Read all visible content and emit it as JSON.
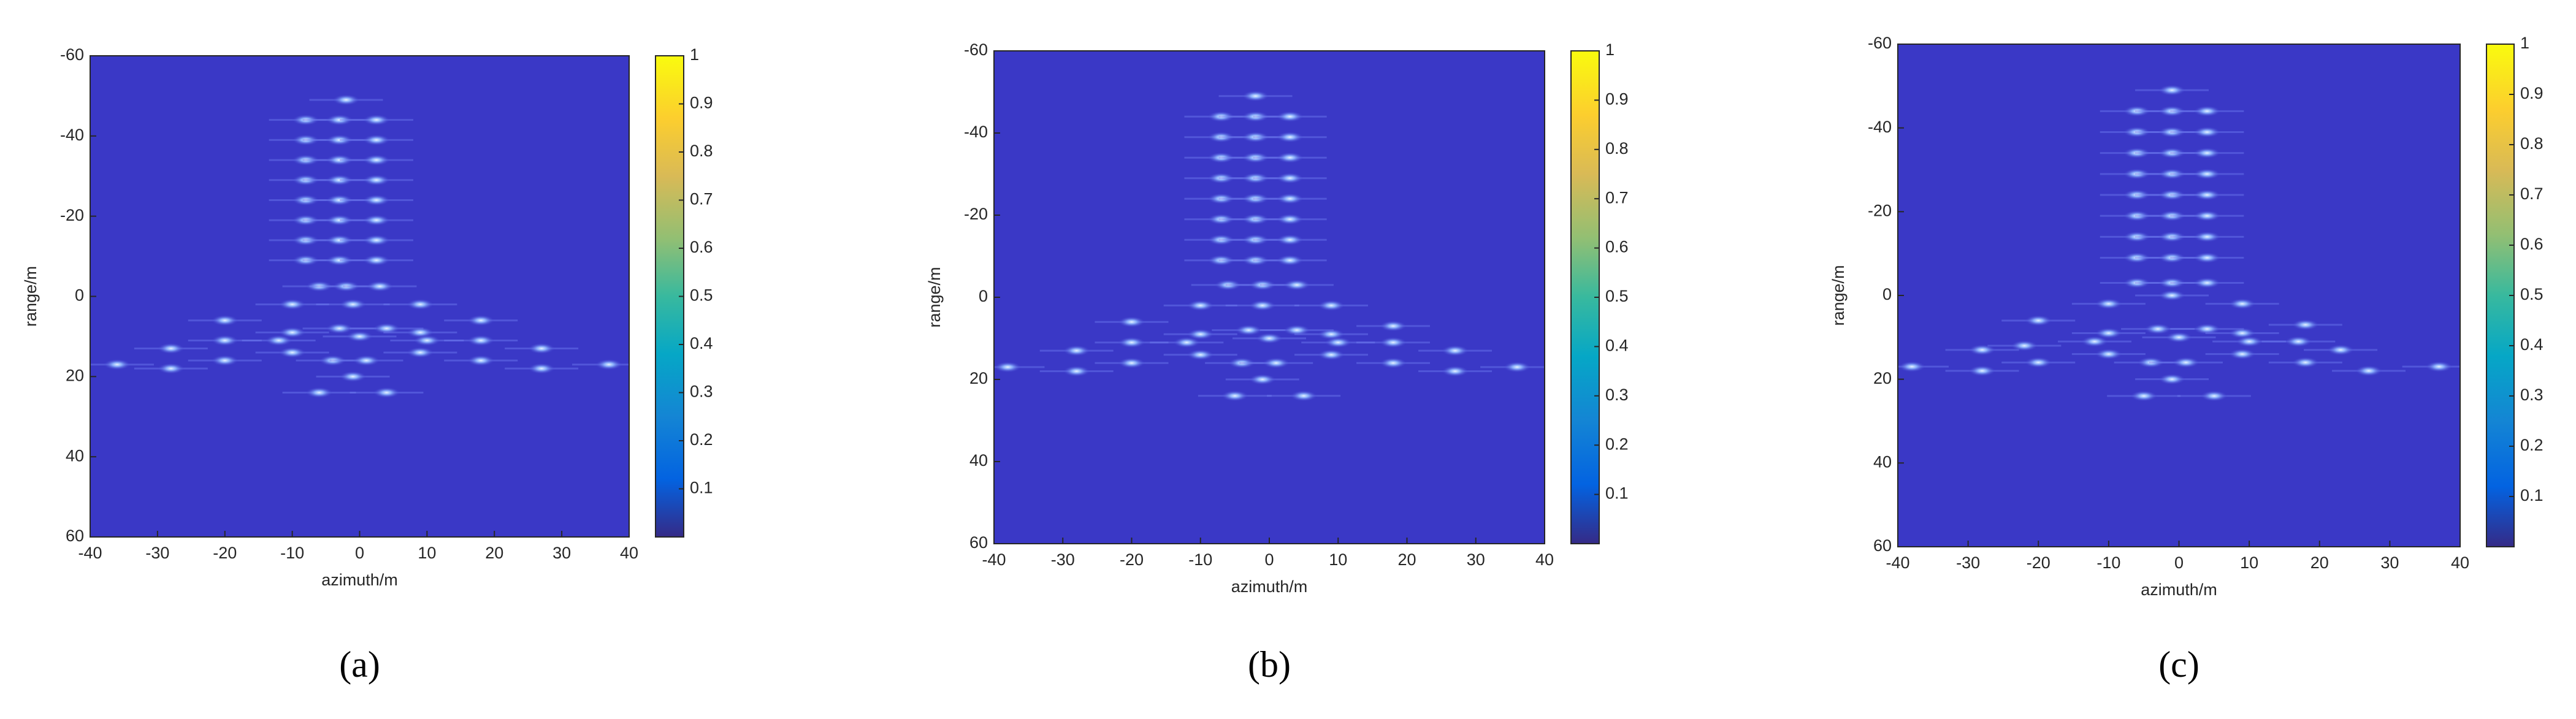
{
  "chart_data": [
    {
      "type": "image",
      "caption": "(a)",
      "xlabel": "azimuth/m",
      "ylabel": "range/m",
      "xlim": [
        -40,
        40
      ],
      "ylim": [
        60,
        -60
      ],
      "xticks": [
        -40,
        -30,
        -20,
        -10,
        0,
        10,
        20,
        30,
        40
      ],
      "yticks": [
        -60,
        -40,
        -20,
        0,
        20,
        40,
        60
      ],
      "clim": [
        0,
        1
      ],
      "cticks": [
        0.1,
        0.2,
        0.3,
        0.4,
        0.5,
        0.6,
        0.7,
        0.8,
        0.9,
        1
      ],
      "points": {
        "x": [
          -2,
          -8,
          -3,
          2.5,
          -8,
          -3,
          2.5,
          -8,
          -3,
          2.5,
          -8,
          -3,
          2.5,
          -8,
          -3,
          2.5,
          -8,
          -3,
          2.5,
          -8,
          -3,
          2.5,
          -8,
          -3,
          2.5,
          -6,
          -2,
          3,
          -10,
          -1,
          9,
          -20,
          18,
          -10,
          -3,
          4,
          9,
          -20,
          -12,
          0,
          10,
          18,
          -28,
          -10,
          9,
          27,
          -36,
          -20,
          -4,
          1,
          18,
          37,
          -28,
          27,
          -1,
          -6,
          4
        ],
        "y": [
          -49,
          -44,
          -44,
          -44,
          -39,
          -39,
          -39,
          -34,
          -34,
          -34,
          -29,
          -29,
          -29,
          -24,
          -24,
          -24,
          -19,
          -19,
          -19,
          -14,
          -14,
          -14,
          -9,
          -9,
          -9,
          -2.5,
          -2.5,
          -2.5,
          2,
          2,
          2,
          6,
          6,
          9,
          8,
          8,
          9,
          11,
          11,
          10,
          11,
          11,
          13,
          14,
          14,
          13,
          17,
          16,
          16,
          16,
          16,
          17,
          18,
          18,
          20,
          24,
          24
        ]
      }
    },
    {
      "type": "image",
      "caption": "(b)",
      "xlabel": "azimuth/m",
      "ylabel": "range/m",
      "xlim": [
        -40,
        40
      ],
      "ylim": [
        60,
        -60
      ],
      "xticks": [
        -40,
        -30,
        -20,
        -10,
        0,
        10,
        20,
        30,
        40
      ],
      "yticks": [
        -60,
        -40,
        -20,
        0,
        20,
        40,
        60
      ],
      "clim": [
        0,
        1
      ],
      "cticks": [
        0.1,
        0.2,
        0.3,
        0.4,
        0.5,
        0.6,
        0.7,
        0.8,
        0.9,
        1
      ],
      "points": {
        "x": [
          -2,
          -7,
          -2,
          3,
          -7,
          -2,
          3,
          -7,
          -2,
          3,
          -7,
          -2,
          3,
          -7,
          -2,
          3,
          -7,
          -2,
          3,
          -7,
          -2,
          3,
          -7,
          -2,
          3,
          -6,
          -1,
          4,
          -10,
          -1,
          9,
          -20,
          18,
          -10,
          -3,
          4,
          9,
          -20,
          -12,
          0,
          10,
          18,
          -28,
          -10,
          9,
          27,
          -38,
          -20,
          -4,
          1,
          18,
          36,
          -28,
          27,
          -1,
          -5,
          5
        ],
        "y": [
          -49,
          -44,
          -44,
          -44,
          -39,
          -39,
          -39,
          -34,
          -34,
          -34,
          -29,
          -29,
          -29,
          -24,
          -24,
          -24,
          -19,
          -19,
          -19,
          -14,
          -14,
          -14,
          -9,
          -9,
          -9,
          -3,
          -3,
          -3,
          2,
          2,
          2,
          6,
          7,
          9,
          8,
          8,
          9,
          11,
          11,
          10,
          11,
          11,
          13,
          14,
          14,
          13,
          17,
          16,
          16,
          16,
          16,
          17,
          18,
          18,
          20,
          24,
          24
        ]
      }
    },
    {
      "type": "image",
      "caption": "(c)",
      "xlabel": "azimuth/m",
      "ylabel": "range/m",
      "xlim": [
        -40,
        40
      ],
      "ylim": [
        60,
        -60
      ],
      "xticks": [
        -40,
        -30,
        -20,
        -10,
        0,
        10,
        20,
        30,
        40
      ],
      "yticks": [
        -60,
        -40,
        -20,
        0,
        20,
        40,
        60
      ],
      "clim": [
        0,
        1
      ],
      "cticks": [
        0.1,
        0.2,
        0.3,
        0.4,
        0.5,
        0.6,
        0.7,
        0.8,
        0.9,
        1
      ],
      "points": {
        "x": [
          -1,
          -6,
          -1,
          4,
          -6,
          -1,
          4,
          -6,
          -1,
          4,
          -6,
          -1,
          4,
          -6,
          -1,
          4,
          -6,
          -1,
          4,
          -6,
          -1,
          4,
          -6,
          -1,
          4,
          -6,
          -1,
          4,
          -10,
          -1,
          9,
          -20,
          18,
          -10,
          -3,
          4,
          9,
          -22,
          -12,
          0,
          10,
          17,
          -28,
          -10,
          9,
          23,
          -38,
          -20,
          -4,
          1,
          18,
          37,
          -28,
          27,
          -1,
          -5,
          5
        ],
        "y": [
          -49,
          -44,
          -44,
          -44,
          -39,
          -39,
          -39,
          -34,
          -34,
          -34,
          -29,
          -29,
          -29,
          -24,
          -24,
          -24,
          -19,
          -19,
          -19,
          -14,
          -14,
          -14,
          -9,
          -9,
          -9,
          -3,
          -3,
          -3,
          2,
          0,
          2,
          6,
          7,
          9,
          8,
          8,
          9,
          12,
          11,
          10,
          11,
          11,
          13,
          14,
          14,
          13,
          17,
          16,
          16,
          16,
          16,
          17,
          18,
          18,
          20,
          24,
          24
        ]
      }
    }
  ]
}
